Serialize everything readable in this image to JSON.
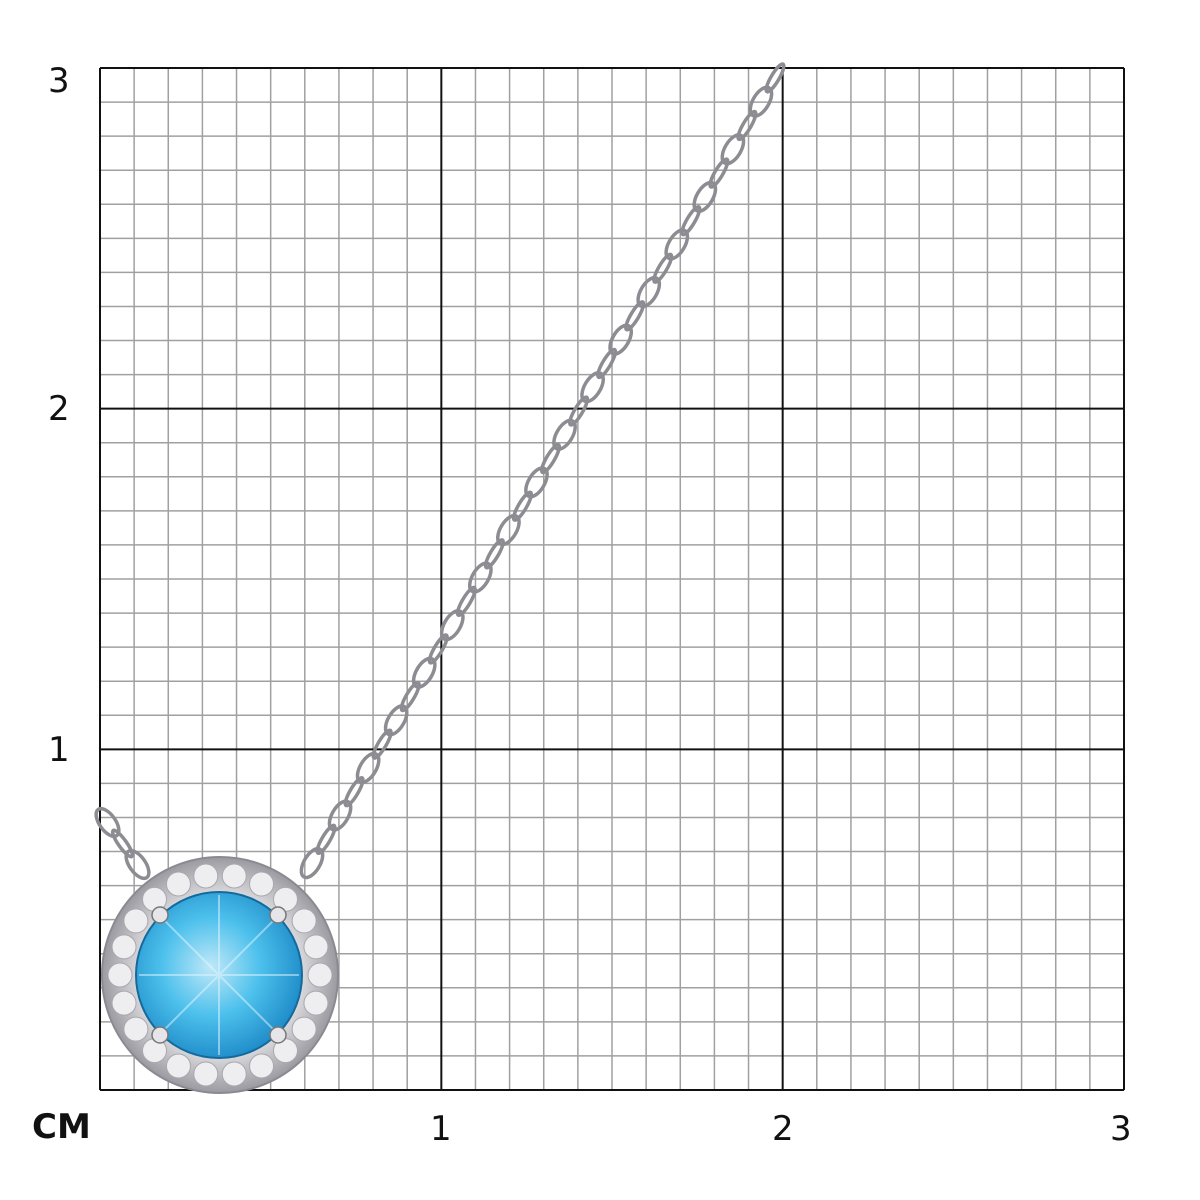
{
  "axis": {
    "unit_label": "CM",
    "x_ticks": [
      "1",
      "2",
      "3"
    ],
    "y_ticks": [
      "3",
      "2",
      "1"
    ],
    "range_cm": [
      0,
      3
    ],
    "minor_divisions_per_cm": 10
  },
  "colors": {
    "major_grid": "#111111",
    "minor_grid": "#a0a0a0",
    "stone": "#2aa6dc",
    "metal": "#c8c8cc"
  }
}
